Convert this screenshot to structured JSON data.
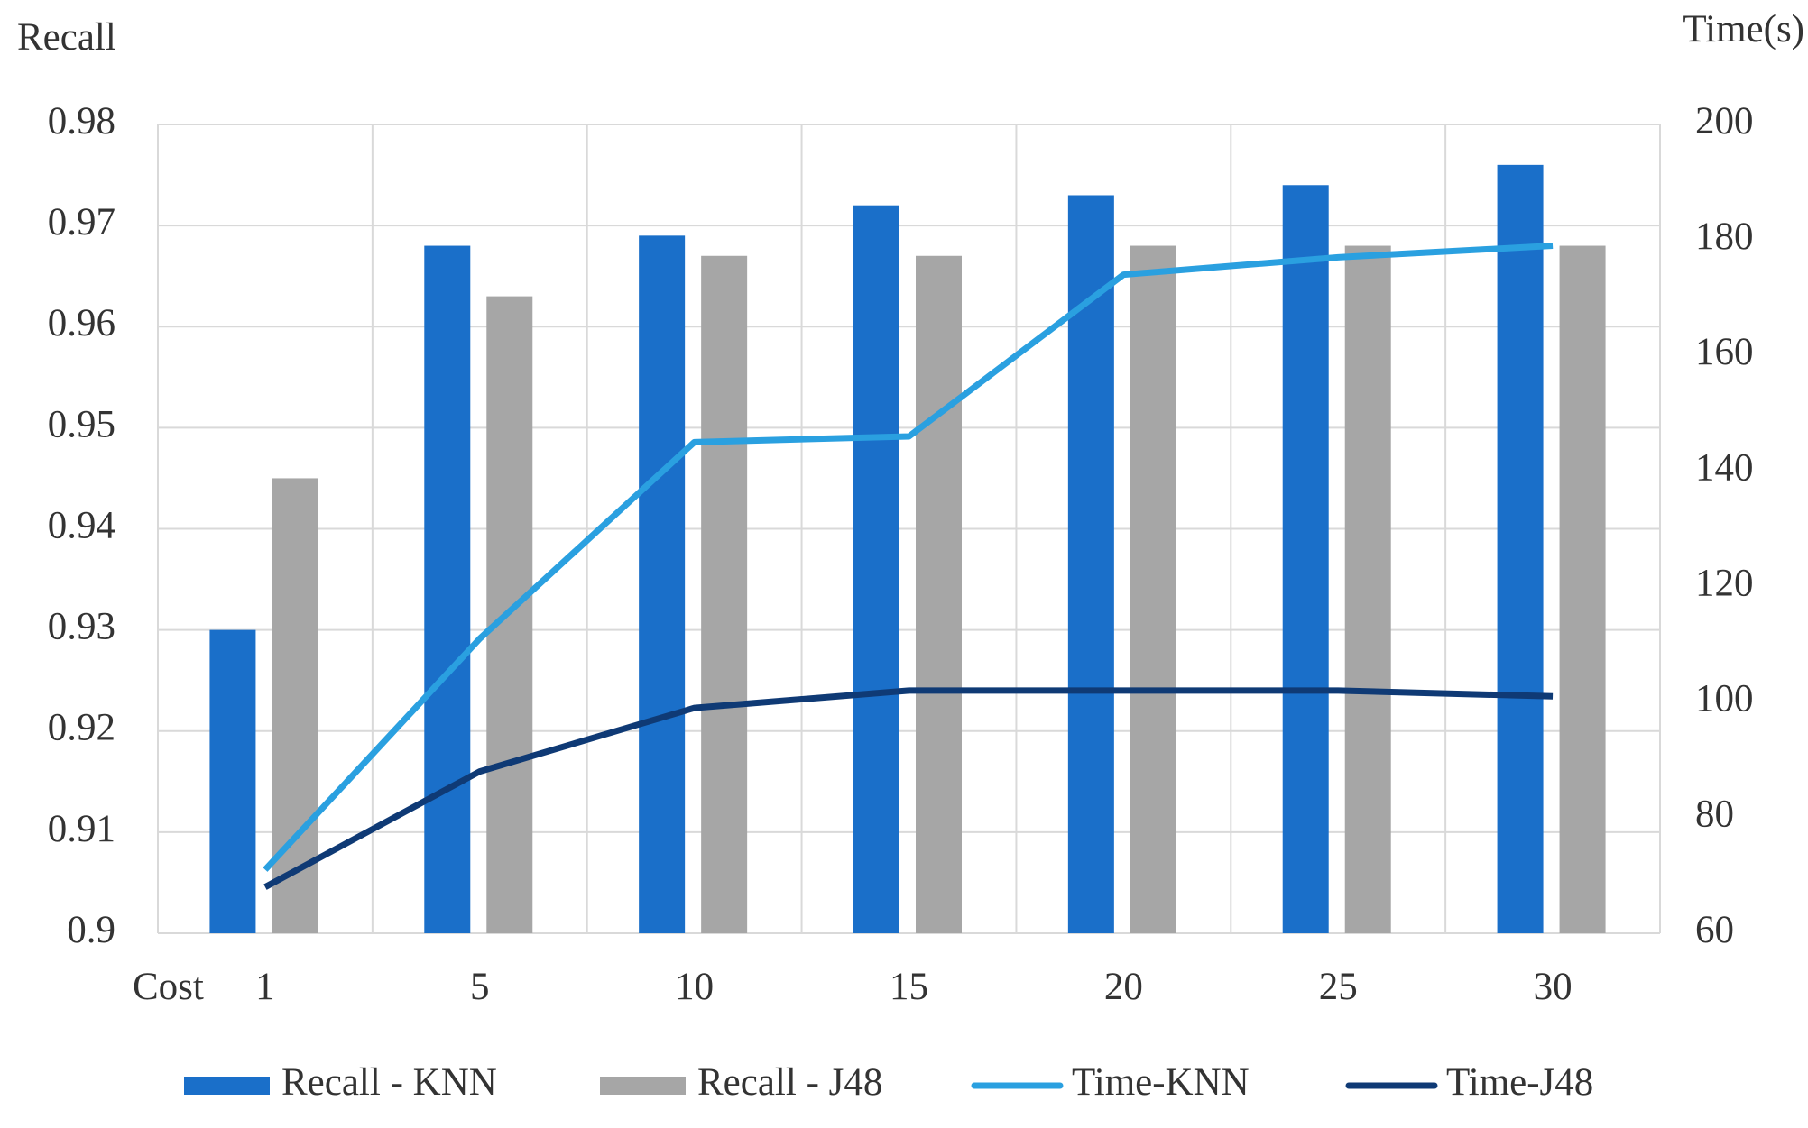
{
  "chart_data": {
    "type": "bar",
    "y_label": "Recall",
    "y2_label": "Time(s)",
    "x_label": "Cost",
    "categories": [
      "1",
      "5",
      "10",
      "15",
      "20",
      "25",
      "30"
    ],
    "series": [
      {
        "name": "Recall - KNN",
        "type": "bar",
        "color": "#1a6fc9",
        "values": [
          0.93,
          0.968,
          0.969,
          0.972,
          0.973,
          0.974,
          0.976
        ]
      },
      {
        "name": "Recall - J48",
        "type": "bar",
        "color": "#a6a6a6",
        "values": [
          0.945,
          0.963,
          0.967,
          0.967,
          0.968,
          0.968,
          0.968
        ]
      },
      {
        "name": "Time-KNN",
        "type": "line",
        "axis": "y2",
        "color": "#2aa0e0",
        "values": [
          71,
          111,
          145,
          146,
          174,
          177,
          179
        ]
      },
      {
        "name": "Time-J48",
        "type": "line",
        "axis": "y2",
        "color": "#0f3a75",
        "values": [
          68,
          88,
          99,
          102,
          102,
          102,
          101
        ]
      }
    ],
    "ylim": [
      0.9,
      0.98
    ],
    "yticks": [
      0.9,
      0.91,
      0.92,
      0.93,
      0.94,
      0.95,
      0.96,
      0.97,
      0.98
    ],
    "y2lim": [
      60,
      200
    ],
    "y2ticks": [
      60,
      80,
      100,
      120,
      140,
      160,
      180,
      200
    ],
    "grid": true,
    "legend": "bottom"
  }
}
